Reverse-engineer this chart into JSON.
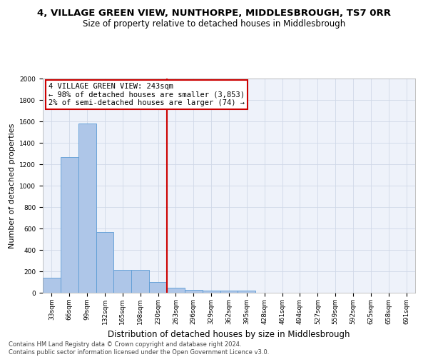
{
  "title": "4, VILLAGE GREEN VIEW, NUNTHORPE, MIDDLESBROUGH, TS7 0RR",
  "subtitle": "Size of property relative to detached houses in Middlesbrough",
  "xlabel": "Distribution of detached houses by size in Middlesbrough",
  "ylabel": "Number of detached properties",
  "categories": [
    "33sqm",
    "66sqm",
    "99sqm",
    "132sqm",
    "165sqm",
    "198sqm",
    "230sqm",
    "263sqm",
    "296sqm",
    "329sqm",
    "362sqm",
    "395sqm",
    "428sqm",
    "461sqm",
    "494sqm",
    "527sqm",
    "559sqm",
    "592sqm",
    "625sqm",
    "658sqm",
    "691sqm"
  ],
  "values": [
    140,
    1270,
    1580,
    570,
    215,
    215,
    100,
    50,
    25,
    20,
    20,
    20,
    0,
    0,
    0,
    0,
    0,
    0,
    0,
    0,
    0
  ],
  "bar_color": "#aec6e8",
  "bar_edge_color": "#5b9bd5",
  "vline_color": "#cc0000",
  "annotation_text": "4 VILLAGE GREEN VIEW: 243sqm\n← 98% of detached houses are smaller (3,853)\n2% of semi-detached houses are larger (74) →",
  "annotation_box_edge": "#cc0000",
  "annotation_box_bg": "#ffffff",
  "ylim": [
    0,
    2000
  ],
  "yticks": [
    0,
    200,
    400,
    600,
    800,
    1000,
    1200,
    1400,
    1600,
    1800,
    2000
  ],
  "grid_color": "#d0d8e8",
  "bg_color": "#eef2fa",
  "footer_text": "Contains HM Land Registry data © Crown copyright and database right 2024.\nContains public sector information licensed under the Open Government Licence v3.0.",
  "title_fontsize": 9.5,
  "subtitle_fontsize": 8.5,
  "xlabel_fontsize": 8.5,
  "ylabel_fontsize": 8,
  "tick_fontsize": 6.5,
  "annotation_fontsize": 7.5,
  "footer_fontsize": 6
}
